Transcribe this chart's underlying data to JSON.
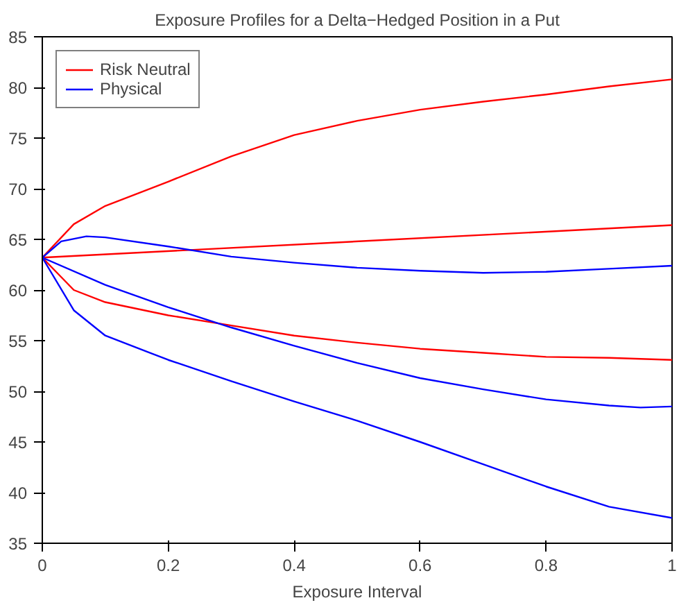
{
  "chart_data": {
    "type": "line",
    "title": "Exposure Profiles for a Delta−Hedged Position in a Put",
    "xlabel": "Exposure Interval",
    "xlim": [
      0,
      1
    ],
    "ylim": [
      35,
      85
    ],
    "xticks": [
      0,
      0.2,
      0.4,
      0.6,
      0.8,
      1
    ],
    "yticks": [
      35,
      40,
      45,
      50,
      55,
      60,
      65,
      70,
      75,
      80,
      85
    ],
    "grid": false,
    "legend": "top left",
    "line_style": "solid",
    "marker": "none",
    "series": [
      {
        "name": "Risk Neutral",
        "color": "#ff0000",
        "x": [
          0,
          0.05,
          0.1,
          0.2,
          0.3,
          0.4,
          0.5,
          0.6,
          0.7,
          0.8,
          0.9,
          1
        ],
        "values": [
          63.2,
          66.5,
          68.3,
          70.7,
          73.2,
          75.3,
          76.7,
          77.8,
          78.6,
          79.3,
          80.1,
          80.8
        ]
      },
      {
        "color": "#ff0000",
        "x": [
          0,
          1
        ],
        "values": [
          63.2,
          66.4
        ]
      },
      {
        "color": "#ff0000",
        "x": [
          0,
          0.05,
          0.1,
          0.2,
          0.3,
          0.4,
          0.5,
          0.6,
          0.7,
          0.8,
          0.9,
          1
        ],
        "values": [
          63.2,
          60,
          58.8,
          57.5,
          56.5,
          55.5,
          54.8,
          54.2,
          53.8,
          53.4,
          53.3,
          53.1
        ]
      },
      {
        "name": "Physical",
        "color": "#0000ff",
        "x": [
          0,
          0.03,
          0.07,
          0.1,
          0.2,
          0.3,
          0.4,
          0.5,
          0.6,
          0.7,
          0.8,
          0.9,
          1
        ],
        "values": [
          63.2,
          64.8,
          65.3,
          65.2,
          64.3,
          63.3,
          62.7,
          62.2,
          61.9,
          61.7,
          61.8,
          62.1,
          62.4
        ]
      },
      {
        "color": "#0000ff",
        "x": [
          0,
          0.1,
          0.2,
          0.3,
          0.4,
          0.5,
          0.6,
          0.7,
          0.8,
          0.9,
          0.95,
          1
        ],
        "values": [
          63.2,
          60.5,
          58.3,
          56.3,
          54.5,
          52.8,
          51.3,
          50.2,
          49.2,
          48.6,
          48.4,
          48.5
        ]
      },
      {
        "color": "#0000ff",
        "x": [
          0,
          0.05,
          0.1,
          0.2,
          0.3,
          0.4,
          0.5,
          0.6,
          0.7,
          0.8,
          0.9,
          1
        ],
        "values": [
          63.2,
          58,
          55.5,
          53.1,
          51,
          49,
          47.1,
          45,
          42.8,
          40.6,
          38.6,
          37.5
        ]
      }
    ]
  }
}
